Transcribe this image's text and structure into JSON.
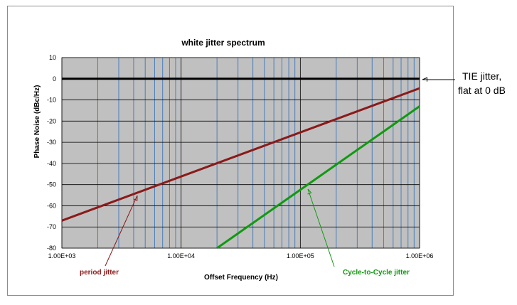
{
  "chart_data": {
    "type": "line",
    "title": "white jitter spectrum",
    "xlabel": "Offset Frequency (Hz)",
    "ylabel": "Phase Noise (dBc/Hz)",
    "xscale": "log",
    "xlim": [
      1000,
      1000000
    ],
    "ylim": [
      -80,
      10
    ],
    "yticks": [
      10,
      0,
      -10,
      -20,
      -30,
      -40,
      -50,
      -60,
      -70,
      -80
    ],
    "xticks": [
      "1.00E+03",
      "1.00E+04",
      "1.00E+05",
      "1.00E+06"
    ],
    "grid": true,
    "plot_background": "#c0c0c0",
    "gridline_color": "#4a7ebb",
    "series": [
      {
        "key": "tie",
        "color": "#000000",
        "x": [
          1000,
          1000000
        ],
        "y": [
          0,
          0
        ]
      },
      {
        "key": "period",
        "color": "#8b1a1a",
        "x": [
          1000,
          1000000
        ],
        "y": [
          -67,
          -4.5
        ]
      },
      {
        "key": "c2c",
        "color": "#119911",
        "x": [
          20000,
          1000000
        ],
        "y": [
          -80,
          -13
        ]
      }
    ],
    "annotations": {
      "tie": {
        "line1": "TIE jitter,",
        "line2": "flat at 0 dB",
        "color": "#000000"
      },
      "period": {
        "text": "period jitter",
        "color": "#8b1a1a"
      },
      "c2c": {
        "text": "Cycle-to-Cycle  jitter",
        "color": "#119911"
      }
    }
  }
}
